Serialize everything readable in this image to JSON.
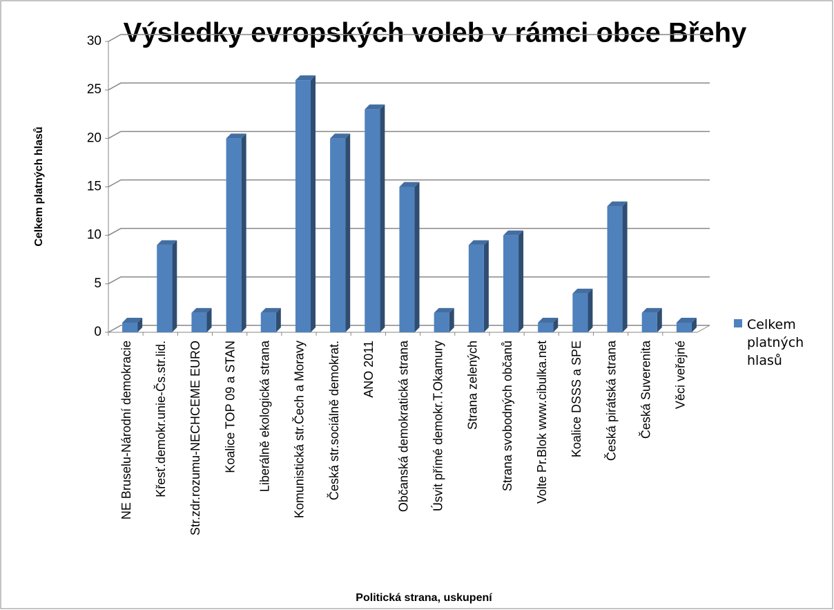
{
  "chart_data": {
    "type": "bar",
    "title": "Výsledky evropských voleb v rámci obce Břehy",
    "y_label": "Celkem platných hlasů",
    "x_label": "Politická strana, uskupení",
    "categories": [
      "NE Bruselu-Národní demokracie",
      "Křesť.demokr.unie-Čs.str.lid.",
      "Str.zdr.rozumu-NECHCEME EURO",
      "Koalice TOP 09 a STAN",
      "Liberálně ekologická strana",
      "Komunistická str.Čech a Moravy",
      "Česká str.sociálně demokrat.",
      "ANO 2011",
      "Občanská demokratická strana",
      "Úsvit přímé demokr.T.Okamury",
      "Strana zelených",
      "Strana svobodných občanů",
      "Volte Pr.Blok www.cibulka.net",
      "Koalice DSSS a SPE",
      "Česká pirátská strana",
      "Česká Suverenita",
      "Věci veřejné"
    ],
    "series": [
      {
        "name": "Celkem platných hlasů",
        "color": "#4f81bd",
        "values": [
          1,
          9,
          2,
          20,
          2,
          26,
          20,
          23,
          15,
          2,
          9,
          10,
          1,
          4,
          13,
          2,
          1
        ]
      }
    ],
    "ylim": [
      0,
      30
    ],
    "yticks": [
      0,
      5,
      10,
      15,
      20,
      25,
      30
    ],
    "grid": true,
    "legend": "right"
  }
}
